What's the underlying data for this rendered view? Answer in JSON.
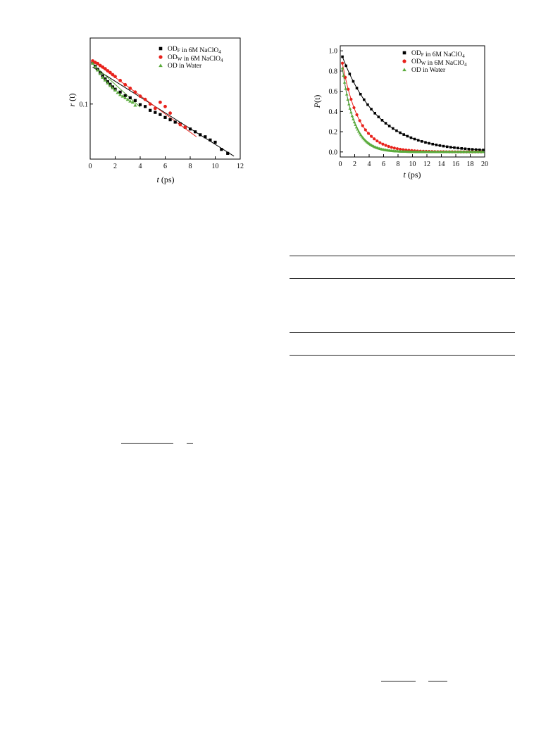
{
  "chart_data": [
    {
      "type": "scatter",
      "ylabel": "r (t)",
      "xlabel": "t (ps)",
      "y_scale": "log",
      "xlim": [
        0,
        12
      ],
      "ylim": [
        0.04,
        0.3
      ],
      "x_ticks": [
        0,
        2,
        4,
        6,
        8,
        10,
        12
      ],
      "y_ticks": [
        {
          "value": 0.1,
          "label": "0.1"
        }
      ],
      "legend": {
        "placement": "top-right"
      },
      "series": [
        {
          "name": "OD_F in 6M NaClO4",
          "color": "#000000",
          "marker": "square",
          "x": [
            0.2,
            0.4,
            0.6,
            0.8,
            1.0,
            1.2,
            1.4,
            1.6,
            1.8,
            2.0,
            2.4,
            2.8,
            3.2,
            3.6,
            4.0,
            4.4,
            4.8,
            5.2,
            5.6,
            6.0,
            6.4,
            6.8,
            7.2,
            7.6,
            8.0,
            8.4,
            8.8,
            9.2,
            9.6,
            10.0,
            10.5,
            11.0
          ],
          "y": [
            0.2,
            0.188,
            0.178,
            0.168,
            0.16,
            0.152,
            0.145,
            0.139,
            0.133,
            0.128,
            0.122,
            0.115,
            0.111,
            0.106,
            0.099,
            0.096,
            0.09,
            0.087,
            0.084,
            0.08,
            0.077,
            0.074,
            0.072,
            0.068,
            0.066,
            0.063,
            0.06,
            0.058,
            0.055,
            0.053,
            0.047,
            0.044
          ]
        },
        {
          "name": "OD_W in 6M NaClO4",
          "color": "#e8221c",
          "marker": "circle",
          "x": [
            0.2,
            0.4,
            0.6,
            0.8,
            1.0,
            1.2,
            1.4,
            1.6,
            1.8,
            2.0,
            2.4,
            2.8,
            3.2,
            3.6,
            4.0,
            4.4,
            4.8,
            5.2,
            5.6,
            6.0,
            6.4,
            7.2,
            7.6
          ],
          "y": [
            0.205,
            0.2,
            0.196,
            0.19,
            0.185,
            0.18,
            0.174,
            0.169,
            0.163,
            0.158,
            0.148,
            0.138,
            0.13,
            0.122,
            0.114,
            0.108,
            0.1,
            0.093,
            0.103,
            0.096,
            0.086,
            0.071,
            0.068
          ]
        },
        {
          "name": "OD in Water",
          "color": "#5aab3c",
          "marker": "triangle",
          "x": [
            0.2,
            0.4,
            0.6,
            0.8,
            1.0,
            1.2,
            1.4,
            1.6,
            1.8,
            2.0,
            2.2,
            2.4,
            2.6,
            2.8,
            3.0,
            3.2,
            3.4,
            3.6
          ],
          "y": [
            0.197,
            0.186,
            0.176,
            0.166,
            0.156,
            0.149,
            0.142,
            0.136,
            0.131,
            0.126,
            0.121,
            0.117,
            0.114,
            0.111,
            0.108,
            0.105,
            0.103,
            0.098
          ]
        }
      ],
      "fits": [
        {
          "color": "#000000",
          "x": [
            0.2,
            11.5
          ],
          "y": [
            0.185,
            0.042
          ]
        },
        {
          "color": "#e8221c",
          "x": [
            0.2,
            8.5
          ],
          "y": [
            0.205,
            0.058
          ]
        },
        {
          "color": "#5aab3c",
          "x": [
            0.2,
            4.0
          ],
          "y": [
            0.195,
            0.095
          ]
        }
      ]
    },
    {
      "type": "scatter",
      "ylabel": "P(t)",
      "xlabel": "t (ps)",
      "xlim": [
        0,
        20
      ],
      "ylim": [
        -0.05,
        1.05
      ],
      "x_ticks": [
        0,
        2,
        4,
        6,
        8,
        10,
        12,
        14,
        16,
        18,
        20
      ],
      "y_ticks": [
        {
          "value": 0.0,
          "label": "0.0"
        },
        {
          "value": 0.2,
          "label": "0.2"
        },
        {
          "value": 0.4,
          "label": "0.4"
        },
        {
          "value": 0.6,
          "label": "0.6"
        },
        {
          "value": 0.8,
          "label": "0.8"
        },
        {
          "value": 1.0,
          "label": "1.0"
        }
      ],
      "legend": {
        "placement": "top-right"
      },
      "series": [
        {
          "name": "OD_F in 6M NaClO4",
          "color": "#000000",
          "marker": "square",
          "tau": 5.0,
          "step": 0.5
        },
        {
          "name": "OD_W in 6M NaClO4",
          "color": "#e8221c",
          "marker": "circle",
          "tau": 2.3,
          "step": 0.4
        },
        {
          "name": "OD in Water",
          "color": "#5aab3c",
          "marker": "triangle",
          "tau": 1.6,
          "step": 0.15
        }
      ]
    }
  ]
}
